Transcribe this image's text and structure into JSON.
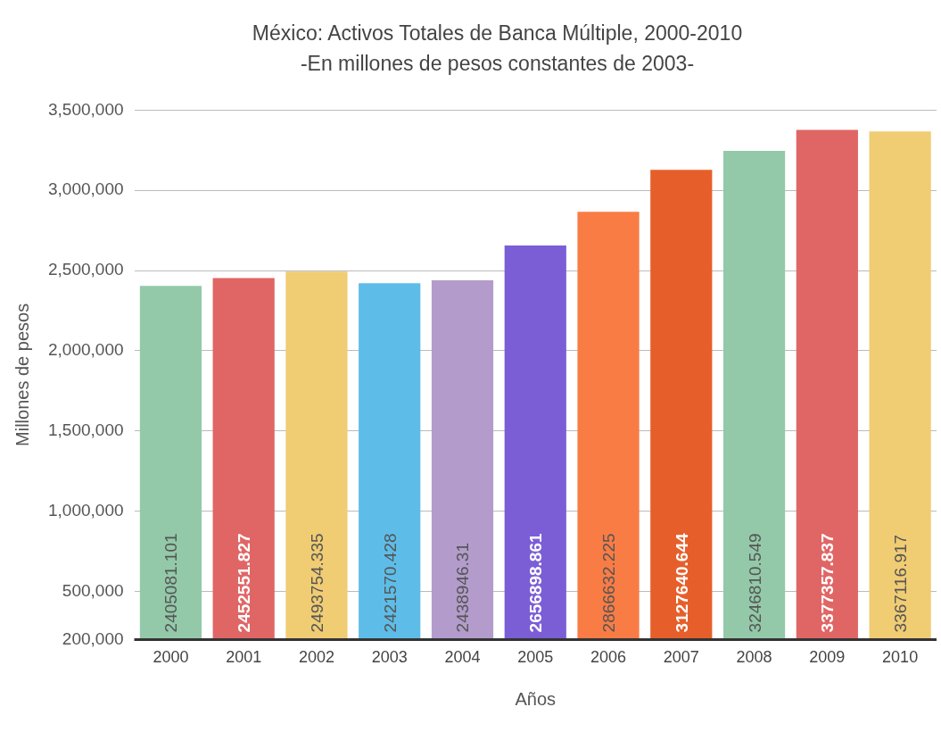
{
  "chart_data": {
    "type": "bar",
    "title": "México: Activos Totales de Banca Múltiple, 2000-2010",
    "subtitle": "-En millones de pesos constantes de 2003-",
    "xlabel": "Años",
    "ylabel": "Millones de pesos",
    "categories": [
      "2000",
      "2001",
      "2002",
      "2003",
      "2004",
      "2005",
      "2006",
      "2007",
      "2008",
      "2009",
      "2010"
    ],
    "values": [
      2405081.101,
      2452551.827,
      2493754.335,
      2421570.428,
      2438946.31,
      2656898.861,
      2866632.225,
      3127640.644,
      3246810.549,
      3377357.837,
      3367116.917
    ],
    "colors": [
      "#93c9a9",
      "#e06666",
      "#f0cc73",
      "#5dbde8",
      "#b39ccb",
      "#7b5ed6",
      "#f97c45",
      "#e65f2b",
      "#93c9a9",
      "#e06666",
      "#f0cc73"
    ],
    "ylim": [
      200000,
      3500000
    ],
    "yticks": [
      {
        "value": 200000,
        "label": "200,000"
      },
      {
        "value": 500000,
        "label": "500,000"
      },
      {
        "value": 1000000,
        "label": "1,000,000"
      },
      {
        "value": 1500000,
        "label": "1,500,000"
      },
      {
        "value": 2000000,
        "label": "2,000,000"
      },
      {
        "value": 2500000,
        "label": "2,500,000"
      },
      {
        "value": 3000000,
        "label": "3,000,000"
      },
      {
        "value": 3500000,
        "label": "3,500,000"
      }
    ],
    "grid": "y",
    "data_labels": true
  }
}
